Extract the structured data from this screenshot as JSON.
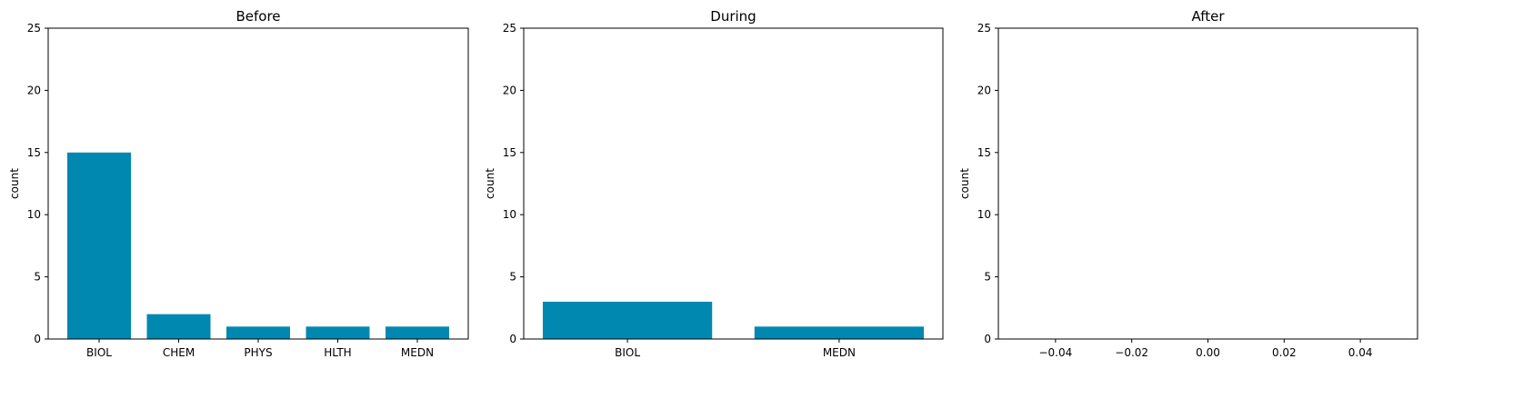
{
  "chart_data": [
    {
      "type": "bar",
      "title": "Before",
      "xlabel": "",
      "ylabel": "count",
      "categories": [
        "BIOL",
        "CHEM",
        "PHYS",
        "HLTH",
        "MEDN"
      ],
      "values": [
        15,
        2,
        1,
        1,
        1
      ],
      "ylim": [
        0,
        25
      ],
      "yticks": [
        0,
        5,
        10,
        15,
        20,
        25
      ],
      "grid": false,
      "bar_color": "#0088b0"
    },
    {
      "type": "bar",
      "title": "During",
      "xlabel": "",
      "ylabel": "count",
      "categories": [
        "BIOL",
        "MEDN"
      ],
      "values": [
        3,
        1
      ],
      "ylim": [
        0,
        25
      ],
      "yticks": [
        0,
        5,
        10,
        15,
        20,
        25
      ],
      "grid": false,
      "bar_color": "#0088b0"
    },
    {
      "type": "bar",
      "title": "After",
      "xlabel": "",
      "ylabel": "count",
      "categories": [],
      "values": [],
      "xlim": [
        -0.055,
        0.055
      ],
      "xticks": [
        "−0.04",
        "−0.02",
        "0.00",
        "0.02",
        "0.04"
      ],
      "xtick_values": [
        -0.04,
        -0.02,
        0.0,
        0.02,
        0.04
      ],
      "ylim": [
        0,
        25
      ],
      "yticks": [
        0,
        5,
        10,
        15,
        20,
        25
      ],
      "grid": false,
      "bar_color": "#0088b0"
    }
  ]
}
